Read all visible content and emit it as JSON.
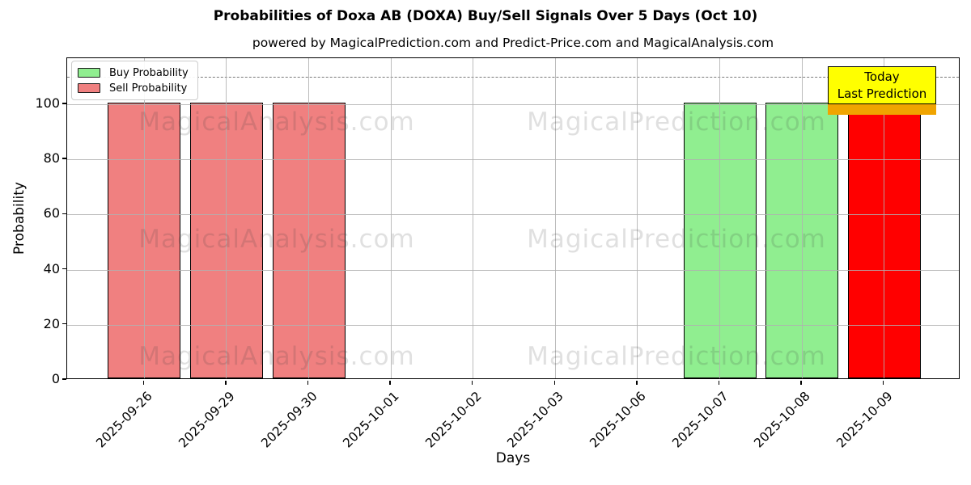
{
  "header": {
    "title": "Probabilities of Doxa AB (DOXA) Buy/Sell Signals Over 5 Days (Oct 10)",
    "subtitle": "powered by MagicalPrediction.com and Predict-Price.com and MagicalAnalysis.com"
  },
  "chart_data": {
    "type": "bar",
    "title": "Probabilities of Doxa AB (DOXA) Buy/Sell Signals Over 5 Days (Oct 10)",
    "subtitle": "powered by MagicalPrediction.com and Predict-Price.com and MagicalAnalysis.com",
    "xlabel": "Days",
    "ylabel": "Probability",
    "categories": [
      "2025-09-26",
      "2025-09-29",
      "2025-09-30",
      "2025-10-01",
      "2025-10-02",
      "2025-10-03",
      "2025-10-06",
      "2025-10-07",
      "2025-10-08",
      "2025-10-09"
    ],
    "series": [
      {
        "name": "Buy Probability",
        "color": "#90EE90",
        "values": [
          0,
          0,
          0,
          0,
          0,
          0,
          0,
          100,
          100,
          0
        ]
      },
      {
        "name": "Sell Probability",
        "color": "#F08080",
        "values": [
          100,
          100,
          100,
          0,
          0,
          0,
          0,
          0,
          0,
          100
        ]
      }
    ],
    "bars": [
      {
        "category": "2025-09-26",
        "value": 100,
        "signal": "sell",
        "color": "#F08080"
      },
      {
        "category": "2025-09-29",
        "value": 100,
        "signal": "sell",
        "color": "#F08080"
      },
      {
        "category": "2025-09-30",
        "value": 100,
        "signal": "sell",
        "color": "#F08080"
      },
      {
        "category": "2025-10-01",
        "value": 0,
        "signal": "none",
        "color": null
      },
      {
        "category": "2025-10-02",
        "value": 0,
        "signal": "none",
        "color": null
      },
      {
        "category": "2025-10-03",
        "value": 0,
        "signal": "none",
        "color": null
      },
      {
        "category": "2025-10-06",
        "value": 0,
        "signal": "none",
        "color": null
      },
      {
        "category": "2025-10-07",
        "value": 100,
        "signal": "buy",
        "color": "#90EE90"
      },
      {
        "category": "2025-10-08",
        "value": 100,
        "signal": "buy",
        "color": "#90EE90"
      },
      {
        "category": "2025-10-09",
        "value": 100,
        "signal": "sell-today",
        "color": "#FF0000"
      }
    ],
    "ylim": [
      0,
      117
    ],
    "yticks": [
      0,
      20,
      40,
      60,
      80,
      100
    ],
    "dashed_guide_y": 110,
    "grid": true,
    "legend_position": "upper left",
    "bar_edge_color": "#000000"
  },
  "legend": {
    "items": [
      {
        "label": "Buy Probability",
        "color": "#90EE90"
      },
      {
        "label": "Sell Probability",
        "color": "#F08080"
      }
    ]
  },
  "annotation": {
    "lines": [
      "Today",
      "Last Prediction"
    ],
    "bg_color": "#FFFF00",
    "shadow_color": "#F0A400"
  },
  "watermarks": {
    "left_text": "MagicalAnalysis.com",
    "right_text": "MagicalPrediction.com"
  }
}
